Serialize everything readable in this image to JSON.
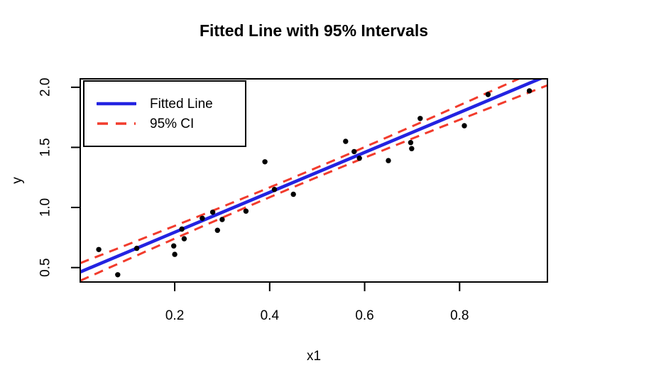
{
  "title": "Fitted Line with 95% Intervals",
  "chart_data": {
    "type": "scatter",
    "title": "Fitted Line with 95% Intervals",
    "xlabel": "x1",
    "ylabel": "y",
    "xlim": [
      0.001,
      0.985
    ],
    "ylim": [
      0.38,
      2.07
    ],
    "grid": "off",
    "x_tick_values": [
      0.2,
      0.4,
      0.6,
      0.8
    ],
    "x_tick_labels": [
      "0.2",
      "0.4",
      "0.6",
      "0.8"
    ],
    "y_tick_values": [
      0.5,
      1.0,
      1.5,
      2.0
    ],
    "y_tick_labels": [
      "0.5",
      "1.0",
      "1.5",
      "2.0"
    ],
    "points": [
      [
        0.04,
        0.65
      ],
      [
        0.08,
        0.44
      ],
      [
        0.12,
        0.66
      ],
      [
        0.198,
        0.68
      ],
      [
        0.2,
        0.61
      ],
      [
        0.215,
        0.82
      ],
      [
        0.22,
        0.74
      ],
      [
        0.258,
        0.91
      ],
      [
        0.28,
        0.96
      ],
      [
        0.29,
        0.81
      ],
      [
        0.3,
        0.9
      ],
      [
        0.35,
        0.97
      ],
      [
        0.39,
        1.38
      ],
      [
        0.41,
        1.15
      ],
      [
        0.45,
        1.11
      ],
      [
        0.56,
        1.55
      ],
      [
        0.578,
        1.465
      ],
      [
        0.589,
        1.41
      ],
      [
        0.65,
        1.39
      ],
      [
        0.697,
        1.54
      ],
      [
        0.699,
        1.49
      ],
      [
        0.717,
        1.74
      ],
      [
        0.81,
        1.68
      ],
      [
        0.86,
        1.94
      ],
      [
        0.947,
        1.97
      ]
    ],
    "fit": {
      "intercept": 0.462,
      "slope": 1.66
    },
    "ci": {
      "level": "95%",
      "half_width_center": 0.04,
      "center_x": 0.46,
      "flare": 0.3
    },
    "legend": [
      {
        "label": "Fitted Line",
        "style": "solid"
      },
      {
        "label": "95% CI",
        "style": "dashed"
      }
    ],
    "legend_position": "topleft",
    "colors": {
      "point": "#000000",
      "fit_line": "#2323e1",
      "ci_line": "#f23b2c",
      "axis": "#000000"
    }
  }
}
